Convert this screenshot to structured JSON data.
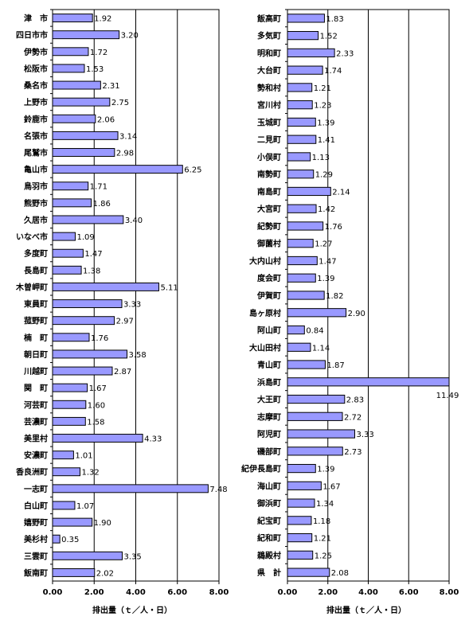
{
  "bar_color": "#9999ff",
  "bar_edge": "#000000",
  "chart_data": [
    {
      "type": "bar",
      "orientation": "horizontal",
      "xlabel": "排出量（ｔ／人・日）",
      "xlim": [
        0,
        8
      ],
      "xticks": [
        "0.00",
        "2.00",
        "4.00",
        "6.00",
        "8.00"
      ],
      "grid": "vertical",
      "categories": [
        "津　市",
        "四日市市",
        "伊勢市",
        "松阪市",
        "桑名市",
        "上野市",
        "鈴鹿市",
        "名張市",
        "尾鷲市",
        "亀山市",
        "鳥羽市",
        "熊野市",
        "久居市",
        "いなべ市",
        "多度町",
        "長島町",
        "木曽岬町",
        "東員町",
        "菰野町",
        "楠　町",
        "朝日町",
        "川越町",
        "関　町",
        "河芸町",
        "芸濃町",
        "美里村",
        "安濃町",
        "香良洲町",
        "一志町",
        "白山町",
        "嬉野町",
        "美杉村",
        "三雲町",
        "飯南町"
      ],
      "values": [
        1.92,
        3.2,
        1.72,
        1.53,
        2.31,
        2.75,
        2.06,
        3.14,
        2.98,
        6.25,
        1.71,
        1.86,
        3.4,
        1.09,
        1.47,
        1.38,
        5.11,
        3.33,
        2.97,
        1.76,
        3.58,
        2.87,
        1.67,
        1.6,
        1.58,
        4.33,
        1.01,
        1.32,
        7.48,
        1.07,
        1.9,
        0.35,
        3.35,
        2.02
      ],
      "value_labels": [
        "1.92",
        "3.20",
        "1.72",
        "1.53",
        "2.31",
        "2.75",
        "2.06",
        "3.14",
        "2.98",
        "6.25",
        "1.71",
        "1.86",
        "3.40",
        "1.09",
        "1.47",
        "1.38",
        "5.11",
        "3.33",
        "2.97",
        "1.76",
        "3.58",
        "2.87",
        "1.67",
        "1.60",
        "1.58",
        "4.33",
        "1.01",
        "1.32",
        "7.48",
        "1.07",
        "1.90",
        "0.35",
        "3.35",
        "2.02"
      ]
    },
    {
      "type": "bar",
      "orientation": "horizontal",
      "xlabel": "排出量（ｔ／人・日）",
      "xlim": [
        0,
        8
      ],
      "xticks": [
        "0.00",
        "2.00",
        "4.00",
        "6.00",
        "8.00"
      ],
      "grid": "vertical",
      "categories": [
        "飯高町",
        "多気町",
        "明和町",
        "大台町",
        "勢和村",
        "宮川村",
        "玉城町",
        "二見町",
        "小俣町",
        "南勢町",
        "南島町",
        "大宮町",
        "紀勢町",
        "御薗村",
        "大内山村",
        "度会町",
        "伊賀町",
        "島ヶ原村",
        "阿山町",
        "大山田村",
        "青山町",
        "浜島町",
        "大王町",
        "志摩町",
        "阿児町",
        "磯部町",
        "紀伊長島町",
        "海山町",
        "御浜町",
        "紀宝町",
        "紀和町",
        "鵜殿村",
        "県　計"
      ],
      "values": [
        1.83,
        1.52,
        2.33,
        1.74,
        1.21,
        1.23,
        1.39,
        1.41,
        1.13,
        1.29,
        2.14,
        1.42,
        1.76,
        1.27,
        1.47,
        1.39,
        1.82,
        2.9,
        0.84,
        1.14,
        1.87,
        11.49,
        2.83,
        2.72,
        3.33,
        2.73,
        1.39,
        1.67,
        1.34,
        1.18,
        1.21,
        1.25,
        2.08
      ],
      "value_labels": [
        "1.83",
        "1.52",
        "2.33",
        "1.74",
        "1.21",
        "1.23",
        "1.39",
        "1.41",
        "1.13",
        "1.29",
        "2.14",
        "1.42",
        "1.76",
        "1.27",
        "1.47",
        "1.39",
        "1.82",
        "2.90",
        "0.84",
        "1.14",
        "1.87",
        "11.49",
        "2.83",
        "2.72",
        "3.33",
        "2.73",
        "1.39",
        "1.67",
        "1.34",
        "1.18",
        "1.21",
        "1.25",
        "2.08"
      ]
    }
  ]
}
